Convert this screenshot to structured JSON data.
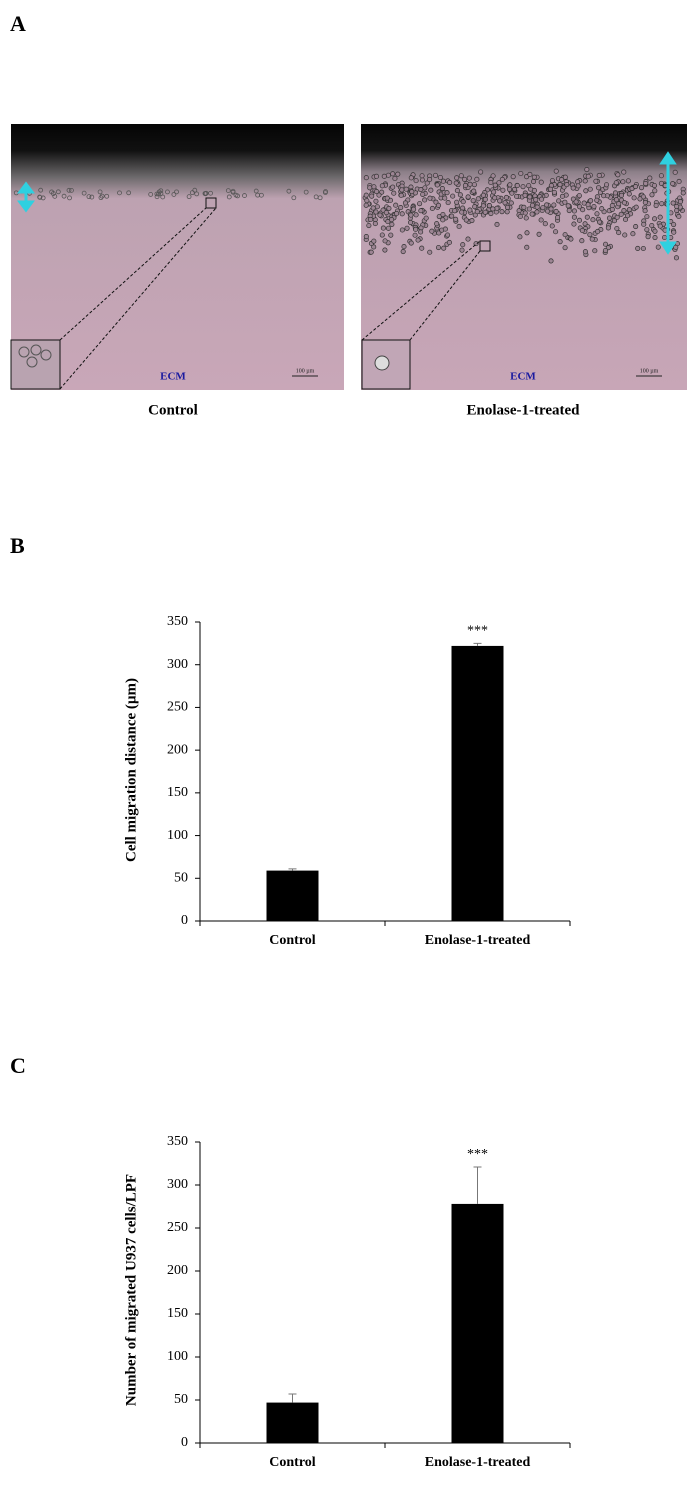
{
  "panel_a": {
    "label": "A",
    "images": [
      {
        "caption": "Control",
        "region_label": "ECM",
        "scale_bar": "100 µm"
      },
      {
        "caption": "Enolase-1-treated",
        "region_label": "ECM",
        "scale_bar": "100 µm"
      }
    ]
  },
  "chart_data": [
    {
      "type": "bar",
      "panel_label": "B",
      "y_label": "Cell migration distance (µm)",
      "categories": [
        "Control",
        "Enolase-1-treated"
      ],
      "values": [
        59,
        322
      ],
      "errors": [
        2,
        3
      ],
      "significance": [
        null,
        "***"
      ],
      "color": "#000000",
      "ylim": [
        0,
        350
      ],
      "yticks": [
        0,
        50,
        100,
        150,
        200,
        250,
        300,
        350
      ]
    },
    {
      "type": "bar",
      "panel_label": "C",
      "y_label": "Number of migrated U937 cells/LPF",
      "categories": [
        "Control",
        "Enolase-1-treated"
      ],
      "values": [
        47,
        278
      ],
      "errors": [
        10,
        43
      ],
      "significance": [
        null,
        "***"
      ],
      "color": "#000000",
      "ylim": [
        0,
        350
      ],
      "yticks": [
        0,
        50,
        100,
        150,
        200,
        250,
        300,
        350
      ]
    }
  ]
}
